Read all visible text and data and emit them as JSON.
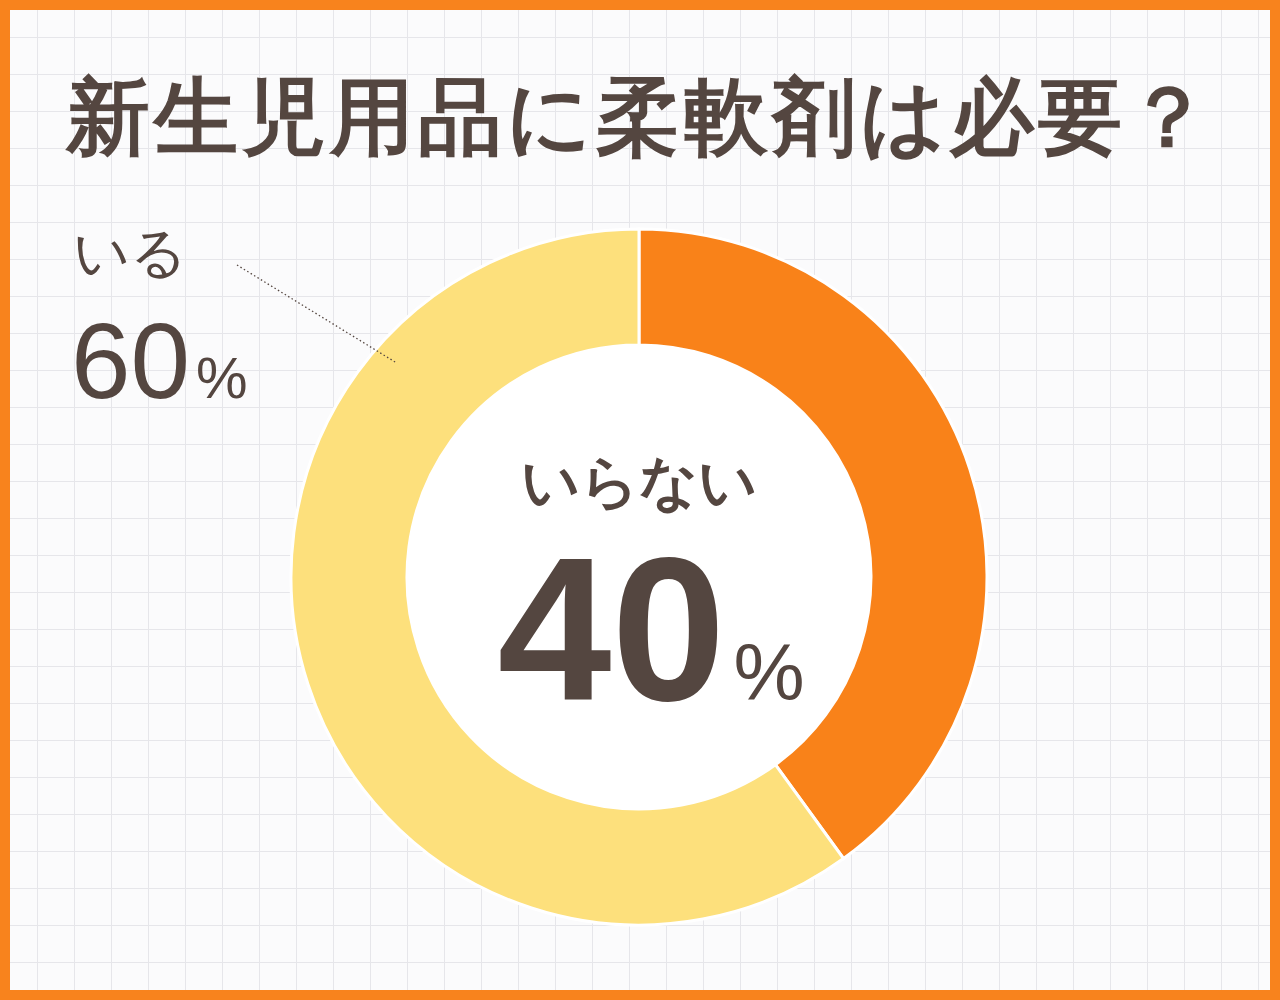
{
  "chart_data": {
    "type": "donut",
    "title": "新生児用品に柔軟剤は必要？",
    "categories": [
      "いらない",
      "いる"
    ],
    "values": [
      40,
      60
    ],
    "colors": [
      "#f98219",
      "#fde07c"
    ],
    "value_labels": [
      "40%",
      "60%"
    ]
  }
}
